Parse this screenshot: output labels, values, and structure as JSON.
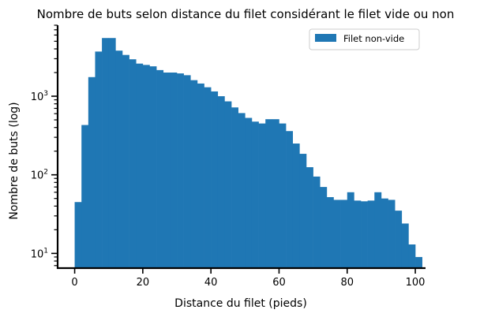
{
  "chart_data": {
    "type": "bar",
    "title": "Nombre de buts selon distance du filet considérant le filet vide ou non",
    "xlabel": "Distance du filet (pieds)",
    "ylabel": "Nombre de buts (log)",
    "xlim": [
      -5,
      103
    ],
    "ylim": [
      6.5,
      8000
    ],
    "yscale": "log",
    "x_ticks": [
      0,
      20,
      40,
      60,
      80,
      100
    ],
    "y_ticks": [
      {
        "value": 10,
        "base": "10",
        "exp": "1"
      },
      {
        "value": 100,
        "base": "10",
        "exp": "2"
      },
      {
        "value": 1000,
        "base": "10",
        "exp": "3"
      }
    ],
    "bin_width": 2,
    "bin_start": 0,
    "series": [
      {
        "name": "Filet non-vide",
        "color": "#1f77b4",
        "values": [
          45,
          430,
          1750,
          3700,
          5500,
          5500,
          3800,
          3350,
          2950,
          2600,
          2500,
          2400,
          2150,
          2000,
          2000,
          1950,
          1850,
          1600,
          1450,
          1300,
          1150,
          1000,
          860,
          720,
          610,
          530,
          475,
          450,
          510,
          510,
          450,
          360,
          250,
          185,
          125,
          95,
          70,
          52,
          48,
          48,
          60,
          47,
          46,
          47,
          60,
          50,
          48,
          35,
          24,
          13,
          9
        ]
      }
    ],
    "legend": {
      "position": "top-right"
    },
    "grid": false
  }
}
